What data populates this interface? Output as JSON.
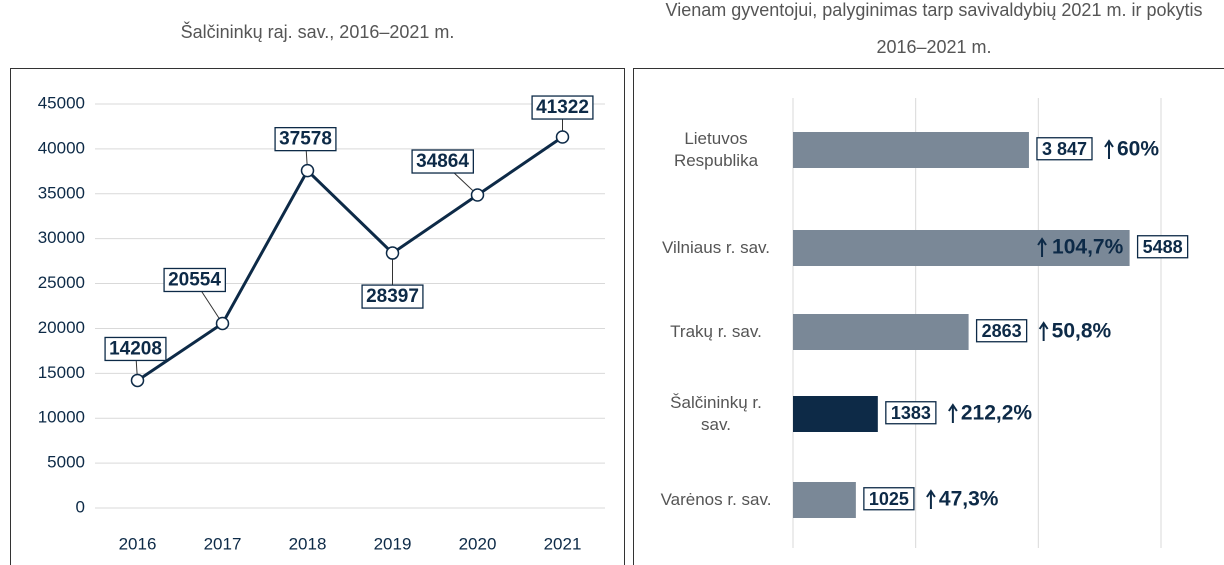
{
  "chart_data": [
    {
      "type": "line",
      "title": "Šalčininkų raj. sav., 2016–2021 m.",
      "categories": [
        "2016",
        "2017",
        "2018",
        "2019",
        "2020",
        "2021"
      ],
      "values": [
        14208,
        20554,
        37578,
        28397,
        34864,
        41322
      ],
      "color": "#0d2a47",
      "ylim": [
        0,
        45000
      ],
      "yticks": [
        0,
        5000,
        10000,
        15000,
        20000,
        25000,
        30000,
        35000,
        40000,
        45000
      ],
      "grid": true
    },
    {
      "type": "hbar",
      "title": "Vienam gyventojui, palyginimas tarp savivaldybių 2021 m. ir pokytis 2016–2021 m.",
      "categories": [
        "Lietuvos Respublika",
        "Vilniaus r. sav.",
        "Trakų r. sav.",
        "Šalčininkų r. sav.",
        "Varėnos r. sav."
      ],
      "values": [
        3847,
        5488,
        2863,
        1383,
        1025
      ],
      "value_labels": [
        "3 847",
        "5488",
        "2863",
        "1383",
        "1025"
      ],
      "changes": [
        "60%",
        "104,7%",
        "50,8%",
        "212,2%",
        "47,3%"
      ],
      "colors": [
        "#7a8897",
        "#7a8897",
        "#7a8897",
        "#0d2a47",
        "#7a8897"
      ],
      "xlim": [
        0,
        6000
      ],
      "xticks": [
        0,
        2000,
        4000,
        6000
      ],
      "grid": true
    }
  ]
}
